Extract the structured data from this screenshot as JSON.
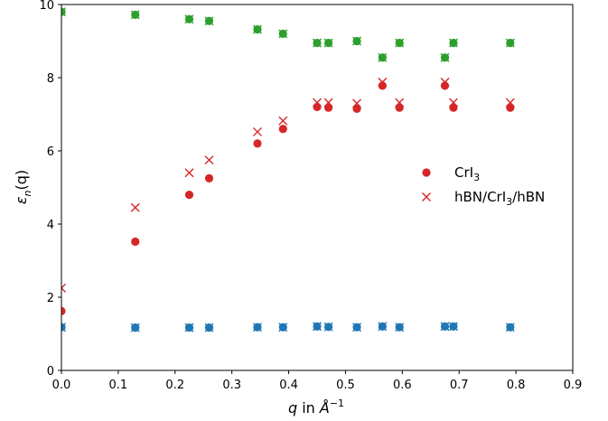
{
  "chart_data": {
    "type": "scatter",
    "title": "",
    "xlabel": "q in Å",
    "xlabel_sup": "−1",
    "ylabel": "ε",
    "ylabel_sub": "n",
    "ylabel_arg": "(q)",
    "xlim": [
      0.0,
      0.9
    ],
    "ylim": [
      0,
      10
    ],
    "xticks": [
      "0.0",
      "0.1",
      "0.2",
      "0.3",
      "0.4",
      "0.5",
      "0.6",
      "0.7",
      "0.8",
      "0.9"
    ],
    "yticks": [
      "0",
      "2",
      "4",
      "6",
      "8",
      "10"
    ],
    "grid": false,
    "legend_placement": "right",
    "legend": [
      {
        "name": "CrI3",
        "base": "CrI",
        "sub": "3",
        "marker": "circle",
        "color": "#d62728"
      },
      {
        "name": "hBN/CrI3/hBN",
        "base": "hBN/CrI",
        "sub": "3",
        "tail": "/hBN",
        "marker": "x",
        "color": "#d62728"
      }
    ],
    "series": [
      {
        "group": "green",
        "color": "#2ca02c",
        "marker": "circle",
        "x": [
          0.0,
          0.13,
          0.225,
          0.26,
          0.345,
          0.39,
          0.45,
          0.47,
          0.52,
          0.565,
          0.595,
          0.675,
          0.69,
          0.79
        ],
        "y": [
          9.8,
          9.72,
          9.6,
          9.55,
          9.32,
          9.2,
          8.95,
          8.95,
          9.0,
          8.55,
          8.95,
          8.55,
          8.95,
          8.95
        ]
      },
      {
        "group": "green",
        "color": "#2ca02c",
        "marker": "x",
        "x": [
          0.0,
          0.13,
          0.225,
          0.26,
          0.345,
          0.39,
          0.45,
          0.47,
          0.52,
          0.565,
          0.595,
          0.675,
          0.69,
          0.79
        ],
        "y": [
          9.8,
          9.72,
          9.6,
          9.55,
          9.32,
          9.2,
          8.95,
          8.95,
          9.0,
          8.55,
          8.95,
          8.55,
          8.95,
          8.95
        ]
      },
      {
        "name": "CrI3",
        "color": "#d62728",
        "marker": "circle",
        "x": [
          0.0,
          0.13,
          0.225,
          0.26,
          0.345,
          0.39,
          0.45,
          0.47,
          0.52,
          0.565,
          0.595,
          0.675,
          0.69,
          0.79
        ],
        "y": [
          1.62,
          3.52,
          4.8,
          5.25,
          6.2,
          6.6,
          7.2,
          7.18,
          7.15,
          7.78,
          7.18,
          7.78,
          7.18,
          7.18
        ]
      },
      {
        "name": "hBN/CrI3/hBN",
        "color": "#d62728",
        "marker": "x",
        "x": [
          0.0,
          0.13,
          0.225,
          0.26,
          0.345,
          0.39,
          0.45,
          0.47,
          0.52,
          0.565,
          0.595,
          0.675,
          0.69,
          0.79
        ],
        "y": [
          2.25,
          4.45,
          5.4,
          5.75,
          6.52,
          6.82,
          7.32,
          7.32,
          7.3,
          7.88,
          7.32,
          7.88,
          7.32,
          7.32
        ]
      },
      {
        "group": "blue",
        "color": "#1f77b4",
        "marker": "circle",
        "x": [
          0.0,
          0.13,
          0.225,
          0.26,
          0.345,
          0.39,
          0.45,
          0.47,
          0.52,
          0.565,
          0.595,
          0.675,
          0.69,
          0.79
        ],
        "y": [
          1.18,
          1.17,
          1.17,
          1.17,
          1.18,
          1.18,
          1.2,
          1.19,
          1.18,
          1.2,
          1.18,
          1.2,
          1.2,
          1.18
        ]
      },
      {
        "group": "blue",
        "color": "#1f77b4",
        "marker": "x",
        "x": [
          0.0,
          0.13,
          0.225,
          0.26,
          0.345,
          0.39,
          0.45,
          0.47,
          0.52,
          0.565,
          0.595,
          0.675,
          0.69,
          0.79
        ],
        "y": [
          1.18,
          1.17,
          1.17,
          1.17,
          1.18,
          1.18,
          1.2,
          1.19,
          1.18,
          1.2,
          1.18,
          1.2,
          1.2,
          1.18
        ]
      }
    ]
  }
}
